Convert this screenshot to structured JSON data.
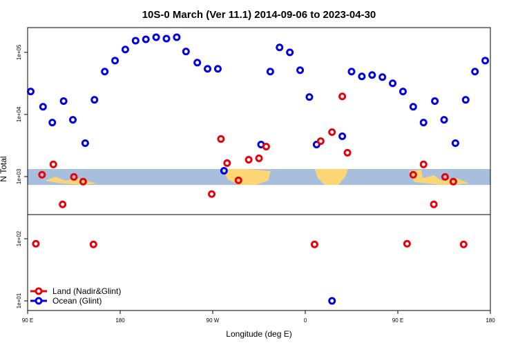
{
  "chart_data": {
    "type": "scatter",
    "title": "10S-0 March (Ver 11.1)   2014-09-06 to 2023-04-30",
    "x_label": "Longitude (deg E)",
    "y_label": "N Total",
    "log_y": true,
    "legend": "bottom-left",
    "xlim": [
      90,
      540
    ],
    "xticks": [
      {
        "value": 90,
        "label": "90 E"
      },
      {
        "value": 180,
        "label": "180"
      },
      {
        "value": 270,
        "label": "90 W"
      },
      {
        "value": 360,
        "label": "0"
      },
      {
        "value": 450,
        "label": "90 E"
      },
      {
        "value": 540,
        "label": "180"
      }
    ],
    "ylim": [
      7,
      250000
    ],
    "yticks": [
      {
        "value": 10,
        "label": "1e+01"
      },
      {
        "value": 100,
        "label": "1e+02"
      },
      {
        "value": 1000,
        "label": "1e+03"
      },
      {
        "value": 10000,
        "label": "1e+04"
      },
      {
        "value": 100000,
        "label": "1e+05"
      }
    ],
    "series": [
      {
        "name": "Land (Nadir&Glint)",
        "color": "#e8000b",
        "x": [
          98,
          104,
          115,
          124,
          135,
          144,
          154,
          269,
          278,
          284,
          295,
          305,
          315,
          322,
          369,
          375,
          386,
          396,
          401,
          459,
          465,
          475,
          485,
          496,
          504,
          514
        ],
        "values": [
          83,
          1070,
          1570,
          357,
          990,
          830,
          81,
          524,
          4030,
          1650,
          870,
          1870,
          1970,
          3040,
          81,
          3720,
          5190,
          19500,
          2420,
          83,
          1070,
          1570,
          357,
          990,
          830,
          81
        ]
      },
      {
        "name": "Ocean (Glint)",
        "color": "#0000e0",
        "x": [
          93,
          105,
          114,
          125,
          134,
          146,
          155,
          165,
          175,
          185,
          195,
          205,
          215,
          225,
          235,
          244,
          255,
          265,
          275,
          281,
          317,
          326,
          335,
          345,
          355,
          364,
          371,
          396,
          405,
          415,
          425,
          435,
          445,
          455,
          465,
          475,
          486,
          495,
          506,
          516,
          525,
          535,
          386
        ],
        "values": [
          23400,
          13300,
          7400,
          16400,
          8200,
          3450,
          17200,
          49000,
          73600,
          111000,
          154000,
          162000,
          175000,
          166000,
          175000,
          103000,
          68200,
          54200,
          54200,
          1240,
          3280,
          49000,
          120000,
          100000,
          51500,
          19100,
          3280,
          4460,
          49000,
          41000,
          43100,
          39900,
          31700,
          23400,
          13300,
          7400,
          16400,
          8200,
          3450,
          17200,
          49000,
          73600,
          10
        ]
      }
    ]
  }
}
